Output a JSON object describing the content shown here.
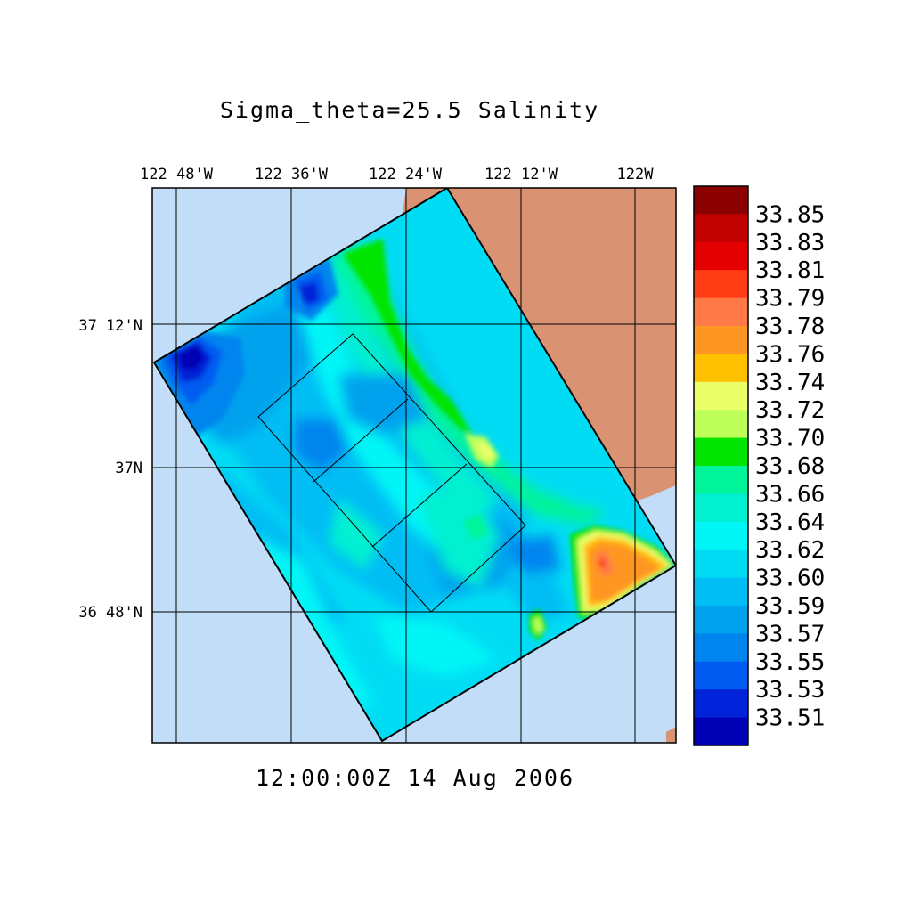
{
  "title": "Sigma_theta=25.5 Salinity",
  "timestamp": "12:00:00Z  14 Aug 2006",
  "colors": {
    "ocean": "#c2ddf8",
    "land": "#d99372",
    "frame": "#000000"
  },
  "map": {
    "lon_labels": [
      "122 48'W",
      "122 36'W",
      "122 24'W",
      "122 12'W",
      "122W"
    ],
    "lat_labels": [
      "37 12'N",
      "37N",
      "36 48'N"
    ],
    "variable": "salinity",
    "field_summary": {
      "offshore_northwest_min": 33.51,
      "mid_domain_typical": 33.6,
      "nearshore_band": 33.68,
      "southeast_coastal_max": 33.79
    }
  },
  "colorbar": {
    "labels": [
      "33.85",
      "33.83",
      "33.81",
      "33.79",
      "33.78",
      "33.76",
      "33.74",
      "33.72",
      "33.70",
      "33.68",
      "33.66",
      "33.64",
      "33.62",
      "33.60",
      "33.59",
      "33.57",
      "33.55",
      "33.53",
      "33.51"
    ],
    "colors": [
      "#8b0000",
      "#c10000",
      "#e40000",
      "#ff3c14",
      "#ff7a46",
      "#ff9624",
      "#ffc000",
      "#ebff6a",
      "#beff5a",
      "#00e400",
      "#00f49a",
      "#00f0d0",
      "#00f6f6",
      "#00dcf4",
      "#00bef4",
      "#00a2ee",
      "#0084ee",
      "#005cf0",
      "#0022d8",
      "#0000b4"
    ]
  }
}
